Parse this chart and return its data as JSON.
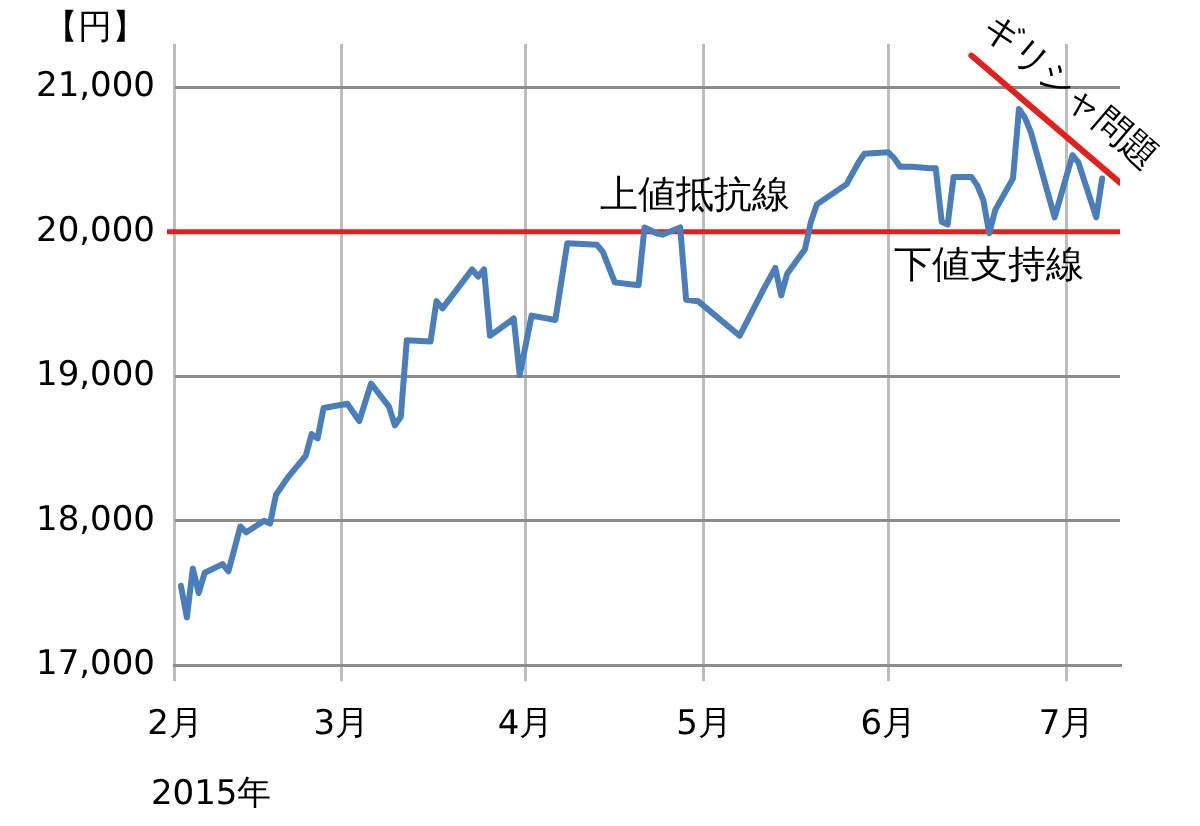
{
  "chart_data": {
    "type": "line",
    "ylabel": "【円】",
    "x": [
      "2015-02-02",
      "2015-02-03",
      "2015-02-04",
      "2015-02-05",
      "2015-02-06",
      "2015-02-09",
      "2015-02-10",
      "2015-02-12",
      "2015-02-13",
      "2015-02-16",
      "2015-02-17",
      "2015-02-18",
      "2015-02-20",
      "2015-02-23",
      "2015-02-24",
      "2015-02-25",
      "2015-02-26",
      "2015-03-02",
      "2015-03-04",
      "2015-03-06",
      "2015-03-09",
      "2015-03-10",
      "2015-03-11",
      "2015-03-12",
      "2015-03-16",
      "2015-03-17",
      "2015-03-18",
      "2015-03-23",
      "2015-03-24",
      "2015-03-25",
      "2015-03-26",
      "2015-03-30",
      "2015-03-31",
      "2015-04-02",
      "2015-04-06",
      "2015-04-08",
      "2015-04-13",
      "2015-04-14",
      "2015-04-16",
      "2015-04-20",
      "2015-04-21",
      "2015-04-23",
      "2015-04-24",
      "2015-04-27",
      "2015-04-28",
      "2015-04-30",
      "2015-05-07",
      "2015-05-11",
      "2015-05-13",
      "2015-05-14",
      "2015-05-15",
      "2015-05-18",
      "2015-05-19",
      "2015-05-20",
      "2015-05-25",
      "2015-05-27",
      "2015-05-28",
      "2015-06-01",
      "2015-06-02",
      "2015-06-03",
      "2015-06-05",
      "2015-06-08",
      "2015-06-09",
      "2015-06-10",
      "2015-06-11",
      "2015-06-12",
      "2015-06-15",
      "2015-06-16",
      "2015-06-17",
      "2015-06-18",
      "2015-06-19",
      "2015-06-22",
      "2015-06-23",
      "2015-06-24",
      "2015-06-25",
      "2015-06-29",
      "2015-07-02",
      "2015-07-03",
      "2015-07-06",
      "2015-07-07"
    ],
    "series": [
      {
        "color": "#4a7ebb",
        "values": [
          17550,
          17330,
          17670,
          17500,
          17640,
          17700,
          17650,
          17960,
          17920,
          18000,
          17980,
          18180,
          18300,
          18450,
          18600,
          18570,
          18780,
          18810,
          18690,
          18950,
          18790,
          18660,
          18720,
          19250,
          19240,
          19520,
          19470,
          19740,
          19690,
          19740,
          19280,
          19400,
          19010,
          19420,
          19390,
          19920,
          19910,
          19860,
          19650,
          19630,
          20030,
          19990,
          19980,
          20030,
          19530,
          19520,
          19280,
          19600,
          19750,
          19560,
          19710,
          19880,
          20070,
          20190,
          20330,
          20480,
          20540,
          20550,
          20510,
          20450,
          20450,
          20440,
          20440,
          20070,
          20050,
          20380,
          20380,
          20320,
          20220,
          19990,
          20150,
          20370,
          20850,
          20790,
          20690,
          20100,
          20530,
          20480,
          20100,
          20370
        ]
      },
      {
        "type": "line",
        "name": "ギリシャ問題",
        "color": "#e3201b",
        "x": [
          "2015-06-15",
          "2015-07-10"
        ],
        "values": [
          21220,
          20340
        ]
      }
    ],
    "xlim": [
      "2015-02-01",
      "2015-07-10"
    ],
    "xticks": [
      {
        "value": "2015-02-01",
        "label": "2月"
      },
      {
        "value": "2015-03-01",
        "label": "3月"
      },
      {
        "value": "2015-04-01",
        "label": "4月"
      },
      {
        "value": "2015-05-01",
        "label": "5月"
      },
      {
        "value": "2015-06-01",
        "label": "6月"
      },
      {
        "value": "2015-07-01",
        "label": "7月"
      }
    ],
    "ylim": [
      17000,
      21300
    ],
    "yticks": [
      {
        "value": 17000,
        "label": "17,000"
      },
      {
        "value": 18000,
        "label": "18,000"
      },
      {
        "value": 19000,
        "label": "19,000"
      },
      {
        "value": 20000,
        "label": "20,000"
      },
      {
        "value": 21000,
        "label": "21,000"
      }
    ],
    "ref_lines": [
      {
        "axis": "y",
        "value": 20000,
        "label": "上値抵抗線",
        "color": "#e3201b"
      }
    ],
    "annotations": [
      "2015年",
      {
        "text": "下値支持線",
        "x": "2015-06-18",
        "y": 20000
      }
    ],
    "grid": true,
    "legend": false,
    "marker": "none",
    "line_style": "solid"
  }
}
